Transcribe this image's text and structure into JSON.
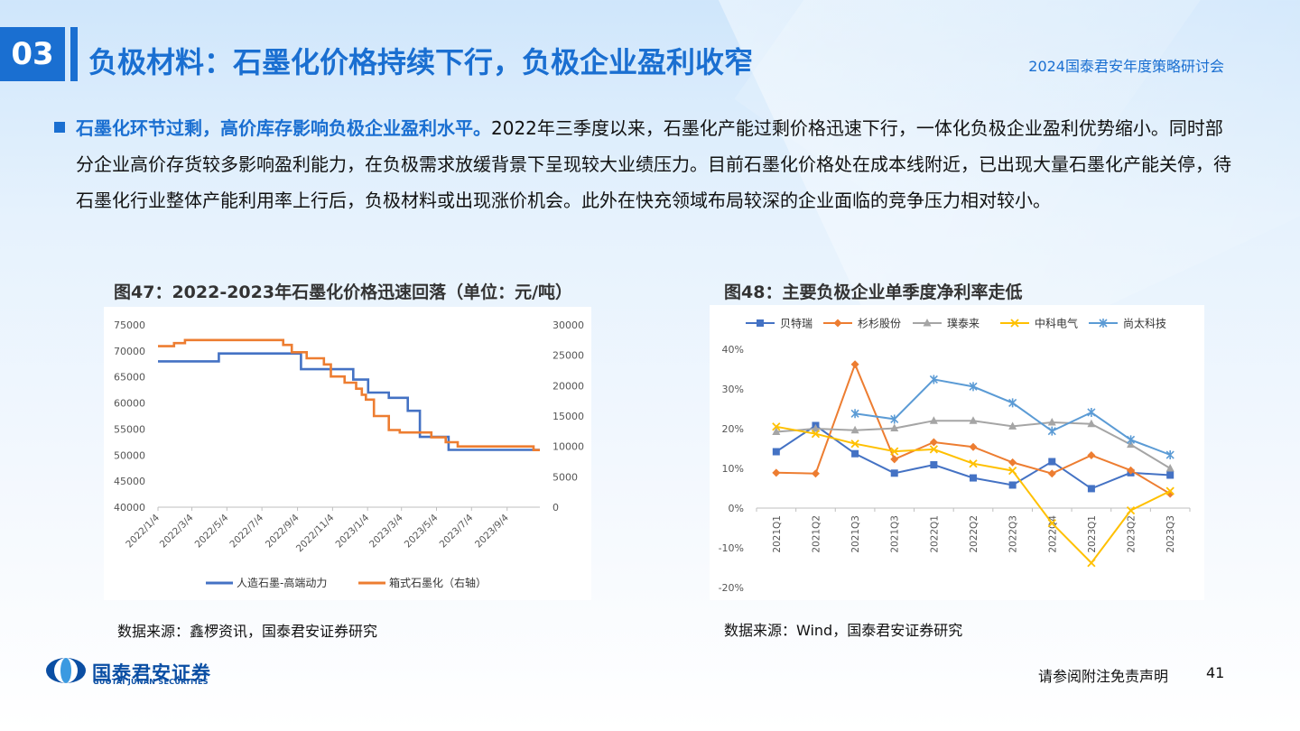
{
  "header": {
    "section_number": "03",
    "title": "负极材料：石墨化价格持续下行，负极企业盈利收窄",
    "conference": "2024国泰君安年度策略研讨会"
  },
  "body": {
    "highlight": "石墨化环节过剩，高价库存影响负极企业盈利水平。",
    "text": "2022年三季度以来，石墨化产能过剩价格迅速下行，一体化负极企业盈利优势缩小。同时部分企业高价存货较多影响盈利能力，在负极需求放缓背景下呈现较大业绩压力。目前石墨化价格处在成本线附近，已出现大量石墨化产能关停，待石墨化行业整体产能利用率上行后，负极材料或出现涨价机会。此外在快充领域布局较深的企业面临的竞争压力相对较小。"
  },
  "figures": [
    {
      "title": "图47：2022-2023年石墨化价格迅速回落（单位：元/吨）",
      "source": "数据来源：鑫椤资讯，国泰君安证券研究"
    },
    {
      "title": "图48：主要负极企业单季度净利率走低",
      "source": "数据来源：Wind，国泰君安证券研究"
    }
  ],
  "footer": {
    "company_cn": "国泰君安证券",
    "company_en": "GUOTAI JUNAN SECURITIES",
    "disclaimer": "请参阅附注免责声明",
    "page": "41"
  },
  "colors": {
    "brand": "#1a6fd1",
    "series_blue": "#4472c4",
    "series_orange": "#ed7d31"
  },
  "chart_data": [
    {
      "type": "line",
      "categories": [
        "2022/1/4",
        "2022/3/4",
        "2022/5/4",
        "2022/7/4",
        "2022/9/4",
        "2022/11/4",
        "2023/1/4",
        "2023/3/4",
        "2023/5/4",
        "2023/7/4",
        "2023/9/4"
      ],
      "x_range": [
        "2022/1/4",
        "2023/10/31"
      ],
      "ylim": [
        40000,
        75000
      ],
      "y_ticks": [
        40000,
        45000,
        50000,
        55000,
        60000,
        65000,
        70000,
        75000
      ],
      "y2lim": [
        0,
        30000
      ],
      "y2_ticks": [
        0,
        5000,
        10000,
        15000,
        20000,
        25000,
        30000
      ],
      "series": [
        {
          "name": "人造石墨-高端动力",
          "axis": "left",
          "color": "#4472c4",
          "points": [
            [
              "2022/1/4",
              68000
            ],
            [
              "2022/4/20",
              68000
            ],
            [
              "2022/4/20",
              69500
            ],
            [
              "2022/9/10",
              69500
            ],
            [
              "2022/9/10",
              66500
            ],
            [
              "2022/12/10",
              66500
            ],
            [
              "2022/12/10",
              64500
            ],
            [
              "2023/1/5",
              64500
            ],
            [
              "2023/1/5",
              62000
            ],
            [
              "2023/2/10",
              62000
            ],
            [
              "2023/2/10",
              61000
            ],
            [
              "2023/3/15",
              61000
            ],
            [
              "2023/3/15",
              58500
            ],
            [
              "2023/4/5",
              58500
            ],
            [
              "2023/4/5",
              53500
            ],
            [
              "2023/5/25",
              53500
            ],
            [
              "2023/5/25",
              51000
            ],
            [
              "2023/10/31",
              51000
            ]
          ]
        },
        {
          "name": "箱式石墨化（右轴）",
          "axis": "right",
          "color": "#ed7d31",
          "points": [
            [
              "2022/1/4",
              26500
            ],
            [
              "2022/2/1",
              26500
            ],
            [
              "2022/2/1",
              27000
            ],
            [
              "2022/2/20",
              27000
            ],
            [
              "2022/2/20",
              27500
            ],
            [
              "2022/8/10",
              27500
            ],
            [
              "2022/8/10",
              26700
            ],
            [
              "2022/8/25",
              26700
            ],
            [
              "2022/8/25",
              25500
            ],
            [
              "2022/9/20",
              25500
            ],
            [
              "2022/9/20",
              24500
            ],
            [
              "2022/10/20",
              24500
            ],
            [
              "2022/10/20",
              23500
            ],
            [
              "2022/11/1",
              23500
            ],
            [
              "2022/11/1",
              21500
            ],
            [
              "2022/11/25",
              21500
            ],
            [
              "2022/11/25",
              20500
            ],
            [
              "2022/12/15",
              20500
            ],
            [
              "2022/12/15",
              19500
            ],
            [
              "2022/12/25",
              19500
            ],
            [
              "2022/12/25",
              18500
            ],
            [
              "2023/1/1",
              18500
            ],
            [
              "2023/1/1",
              17700
            ],
            [
              "2023/1/15",
              17700
            ],
            [
              "2023/1/15",
              15000
            ],
            [
              "2023/2/10",
              15000
            ],
            [
              "2023/2/10",
              12700
            ],
            [
              "2023/3/1",
              12700
            ],
            [
              "2023/3/1",
              12300
            ],
            [
              "2023/4/25",
              12300
            ],
            [
              "2023/4/25",
              11500
            ],
            [
              "2023/5/20",
              11500
            ],
            [
              "2023/5/20",
              10700
            ],
            [
              "2023/6/10",
              10700
            ],
            [
              "2023/6/10",
              10000
            ],
            [
              "2023/10/20",
              10000
            ],
            [
              "2023/10/20",
              9400
            ],
            [
              "2023/10/31",
              9400
            ]
          ]
        }
      ]
    },
    {
      "type": "line",
      "categories": [
        "2021Q1",
        "2021Q2",
        "2021Q3",
        "2021Q3",
        "2022Q1",
        "2022Q2",
        "2022Q3",
        "2022Q4",
        "2023Q1",
        "2023Q2",
        "2023Q3"
      ],
      "ylim": [
        -20,
        40
      ],
      "y_ticks": [
        "-20%",
        "-10%",
        "0%",
        "10%",
        "20%",
        "30%",
        "40%"
      ],
      "unit": "%",
      "series": [
        {
          "name": "贝特瑞",
          "color": "#4472c4",
          "marker": "square",
          "values": [
            14.2,
            20.8,
            13.7,
            8.8,
            10.9,
            7.6,
            5.8,
            11.7,
            4.9,
            8.9,
            8.3
          ]
        },
        {
          "name": "杉杉股份",
          "color": "#ed7d31",
          "marker": "diamond",
          "values": [
            8.9,
            8.7,
            36.2,
            12.3,
            16.6,
            15.4,
            11.5,
            8.7,
            13.3,
            9.5,
            3.6
          ]
        },
        {
          "name": "璞泰来",
          "color": "#a5a5a5",
          "marker": "triangle",
          "values": [
            19.2,
            20.0,
            19.6,
            20.1,
            22.0,
            22.0,
            20.6,
            21.6,
            21.2,
            16.0,
            10.0
          ]
        },
        {
          "name": "中科电气",
          "color": "#ffc000",
          "marker": "x",
          "values": [
            20.5,
            18.7,
            16.2,
            14.3,
            14.8,
            11.2,
            9.4,
            -3.8,
            -13.8,
            -0.6,
            4.3
          ]
        },
        {
          "name": "尚太科技",
          "color": "#5b9bd5",
          "marker": "star",
          "values": [
            null,
            null,
            23.8,
            22.4,
            32.4,
            30.6,
            26.5,
            19.4,
            24.1,
            17.2,
            13.4
          ]
        }
      ]
    }
  ]
}
